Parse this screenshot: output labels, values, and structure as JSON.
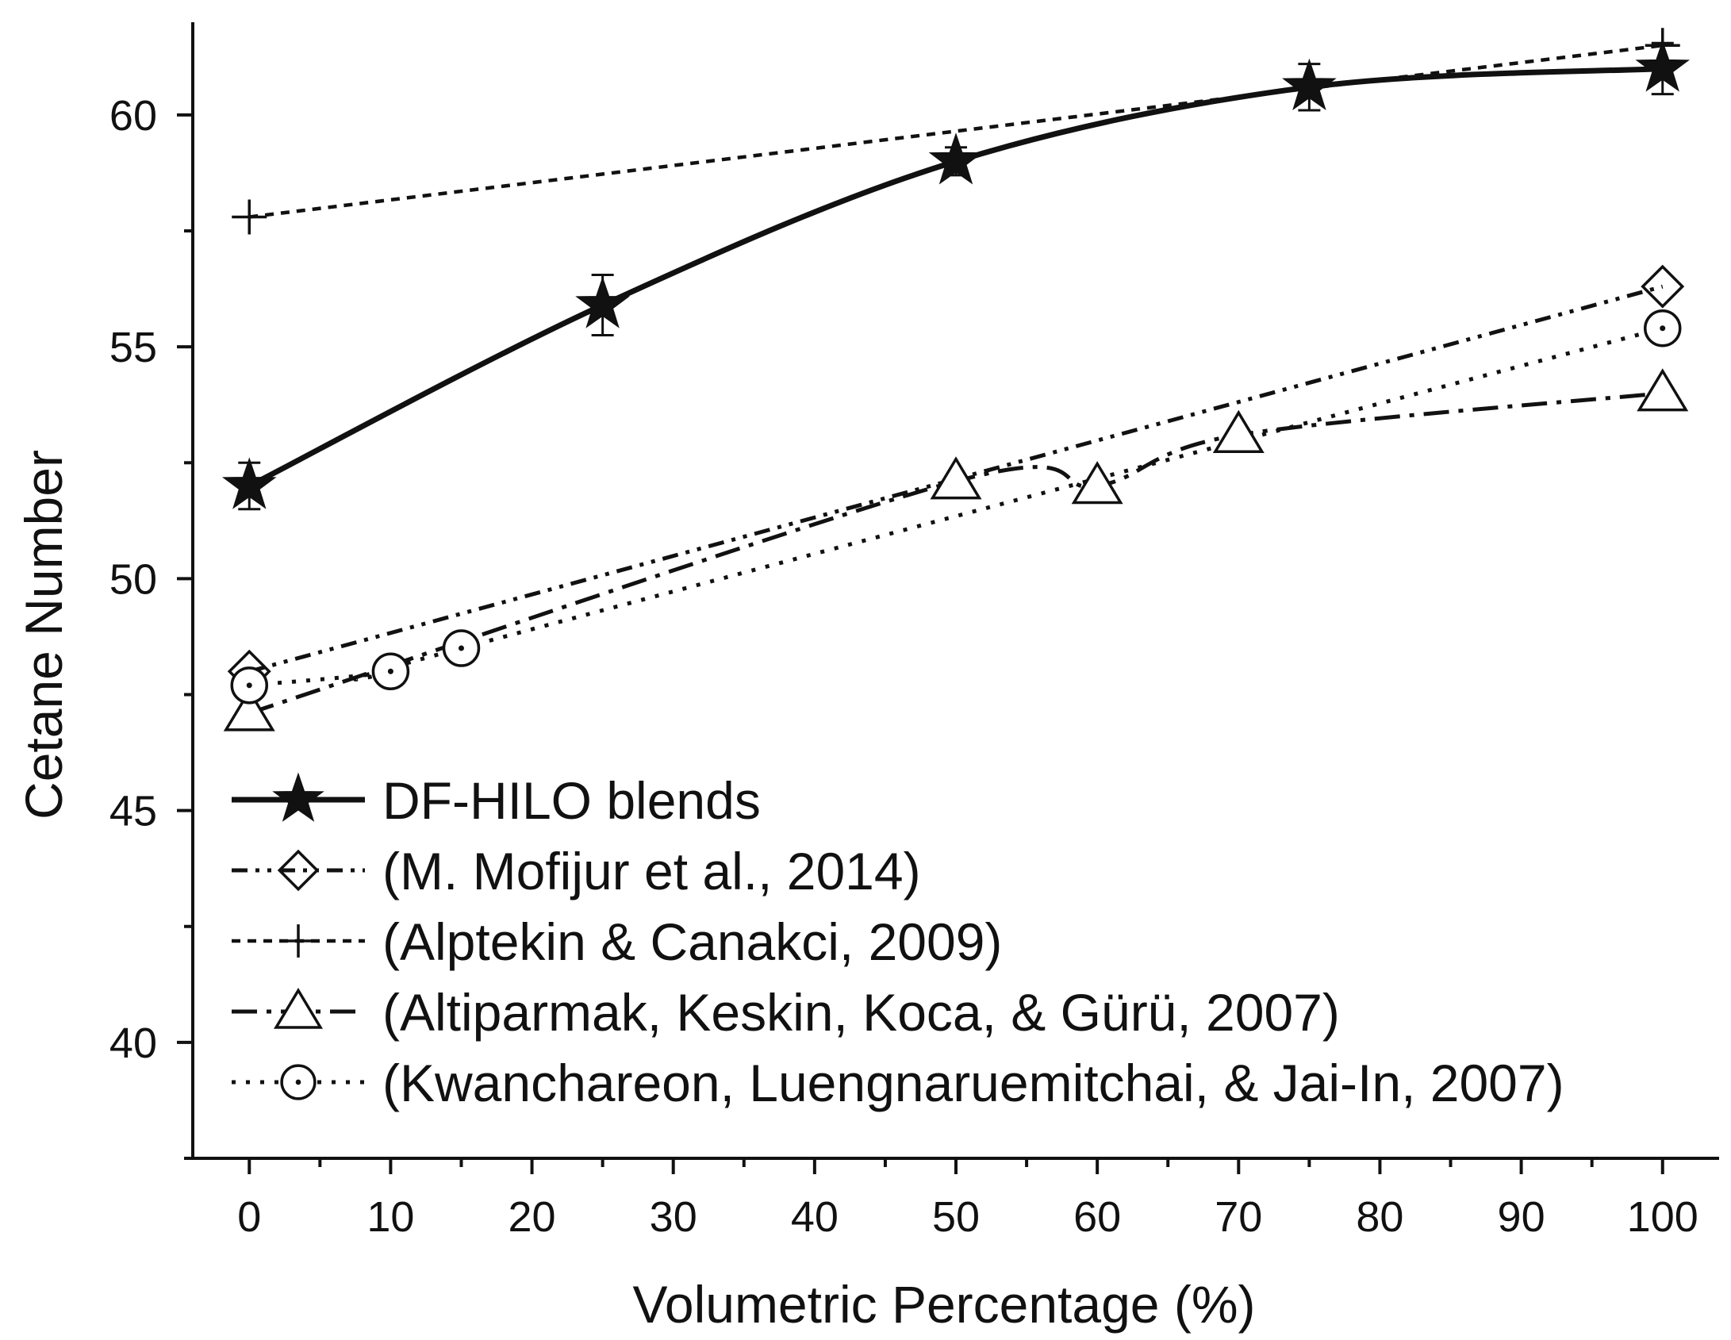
{
  "chart_data": {
    "type": "line",
    "title": "",
    "xlabel": "Volumetric Percentage (%)",
    "ylabel": "Cetane Number",
    "xlim": [
      -4,
      104
    ],
    "ylim": [
      37.5,
      62
    ],
    "xticks": [
      0,
      10,
      20,
      30,
      40,
      50,
      60,
      70,
      80,
      90,
      100
    ],
    "yticks": [
      40,
      45,
      50,
      55,
      60
    ],
    "grid": false,
    "legend_position": "bottom-left",
    "series": [
      {
        "name": "DF-HILO blends",
        "style": "solid-thick",
        "marker": "star",
        "x": [
          0,
          25,
          50,
          75,
          100
        ],
        "y": [
          52.0,
          55.9,
          59.0,
          60.6,
          61.0
        ],
        "errors": [
          0.5,
          0.65,
          0.3,
          0.5,
          0.55
        ]
      },
      {
        "name": "(M. Mofijur et al., 2014)",
        "style": "dash-dot-dot",
        "marker": "diamond",
        "x": [
          0,
          100
        ],
        "y": [
          48.0,
          56.3
        ]
      },
      {
        "name": "(Alptekin & Canakci, 2009)",
        "style": "short-dash",
        "marker": "plus",
        "x": [
          0,
          100
        ],
        "y": [
          57.8,
          61.5
        ]
      },
      {
        "name": "(Altiparmak, Keskin, Koca, & Gürü, 2007)",
        "style": "long-dash-dot",
        "marker": "triangle",
        "x": [
          0,
          50,
          60,
          70,
          100
        ],
        "y": [
          47.1,
          52.1,
          52.0,
          53.1,
          54.0
        ]
      },
      {
        "name": "(Kwanchareon, Luengnaruemitchai, & Jai-In, 2007)",
        "style": "dot",
        "marker": "circle-dot",
        "x": [
          0,
          10,
          15,
          100
        ],
        "y": [
          47.7,
          48.0,
          48.5,
          55.4
        ]
      }
    ]
  }
}
